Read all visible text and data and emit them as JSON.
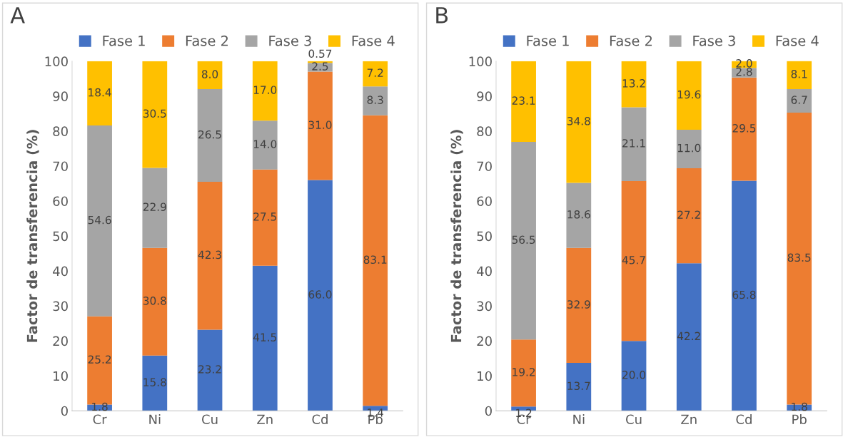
{
  "chart_data": [
    {
      "type": "bar",
      "title": "A",
      "ylabel": "Factor de transferencia (%)",
      "categories": [
        "Cr",
        "Ni",
        "Cu",
        "Zn",
        "Cd",
        "Pb"
      ],
      "stacked": true,
      "legend": "top",
      "grid": false,
      "ylim": [
        0,
        100
      ],
      "yticks": [
        0,
        10,
        20,
        30,
        40,
        50,
        60,
        70,
        80,
        90,
        100
      ],
      "series": [
        {
          "name": "Fase 1",
          "color": "#4472c4",
          "values": [
            1.8,
            15.8,
            23.2,
            41.5,
            66.0,
            1.4
          ],
          "value_labels": [
            "1.8",
            "15.8",
            "23.2",
            "41.5",
            "66.0",
            "1.4"
          ]
        },
        {
          "name": "Fase 2",
          "color": "#ed7d31",
          "values": [
            25.2,
            30.8,
            42.3,
            27.5,
            31.0,
            83.1
          ],
          "value_labels": [
            "25.2",
            "30.8",
            "42.3",
            "27.5",
            "31.0",
            "83.1"
          ]
        },
        {
          "name": "Fase 3",
          "color": "#a5a5a5",
          "values": [
            54.6,
            22.9,
            26.5,
            14.0,
            2.5,
            8.3
          ],
          "value_labels": [
            "54.6",
            "22.9",
            "26.5",
            "14.0",
            "2.5",
            "8.3"
          ]
        },
        {
          "name": "Fase 4",
          "color": "#ffc000",
          "values": [
            18.4,
            30.5,
            8.0,
            17.0,
            0.57,
            7.2
          ],
          "value_labels": [
            "18.4",
            "30.5",
            "8.0",
            "17.0",
            "0.57",
            "7.2"
          ]
        }
      ]
    },
    {
      "type": "bar",
      "title": "B",
      "ylabel": "Factor de transferencia (%)",
      "categories": [
        "Cr",
        "Ni",
        "Cu",
        "Zn",
        "Cd",
        "Pb"
      ],
      "stacked": true,
      "legend": "top",
      "grid": false,
      "ylim": [
        0,
        100
      ],
      "yticks": [
        0,
        10,
        20,
        30,
        40,
        50,
        60,
        70,
        80,
        90,
        100
      ],
      "series": [
        {
          "name": "Fase 1",
          "color": "#4472c4",
          "values": [
            1.2,
            13.7,
            20.0,
            42.2,
            65.8,
            1.8
          ],
          "value_labels": [
            "1.2",
            "13.7",
            "20.0",
            "42.2",
            "65.8",
            "1.8"
          ]
        },
        {
          "name": "Fase 2",
          "color": "#ed7d31",
          "values": [
            19.2,
            32.9,
            45.7,
            27.2,
            29.5,
            83.5
          ],
          "value_labels": [
            "19.2",
            "32.9",
            "45.7",
            "27.2",
            "29.5",
            "83.5"
          ]
        },
        {
          "name": "Fase 3",
          "color": "#a5a5a5",
          "values": [
            56.5,
            18.6,
            21.1,
            11.0,
            2.8,
            6.7
          ],
          "value_labels": [
            "56.5",
            "18.6",
            "21.1",
            "11.0",
            "2.8",
            "6.7"
          ]
        },
        {
          "name": "Fase 4",
          "color": "#ffc000",
          "values": [
            23.1,
            34.8,
            13.2,
            19.6,
            2.0,
            8.1
          ],
          "value_labels": [
            "23.1",
            "34.8",
            "13.2",
            "19.6",
            "2.0",
            "8.1"
          ]
        }
      ]
    }
  ]
}
